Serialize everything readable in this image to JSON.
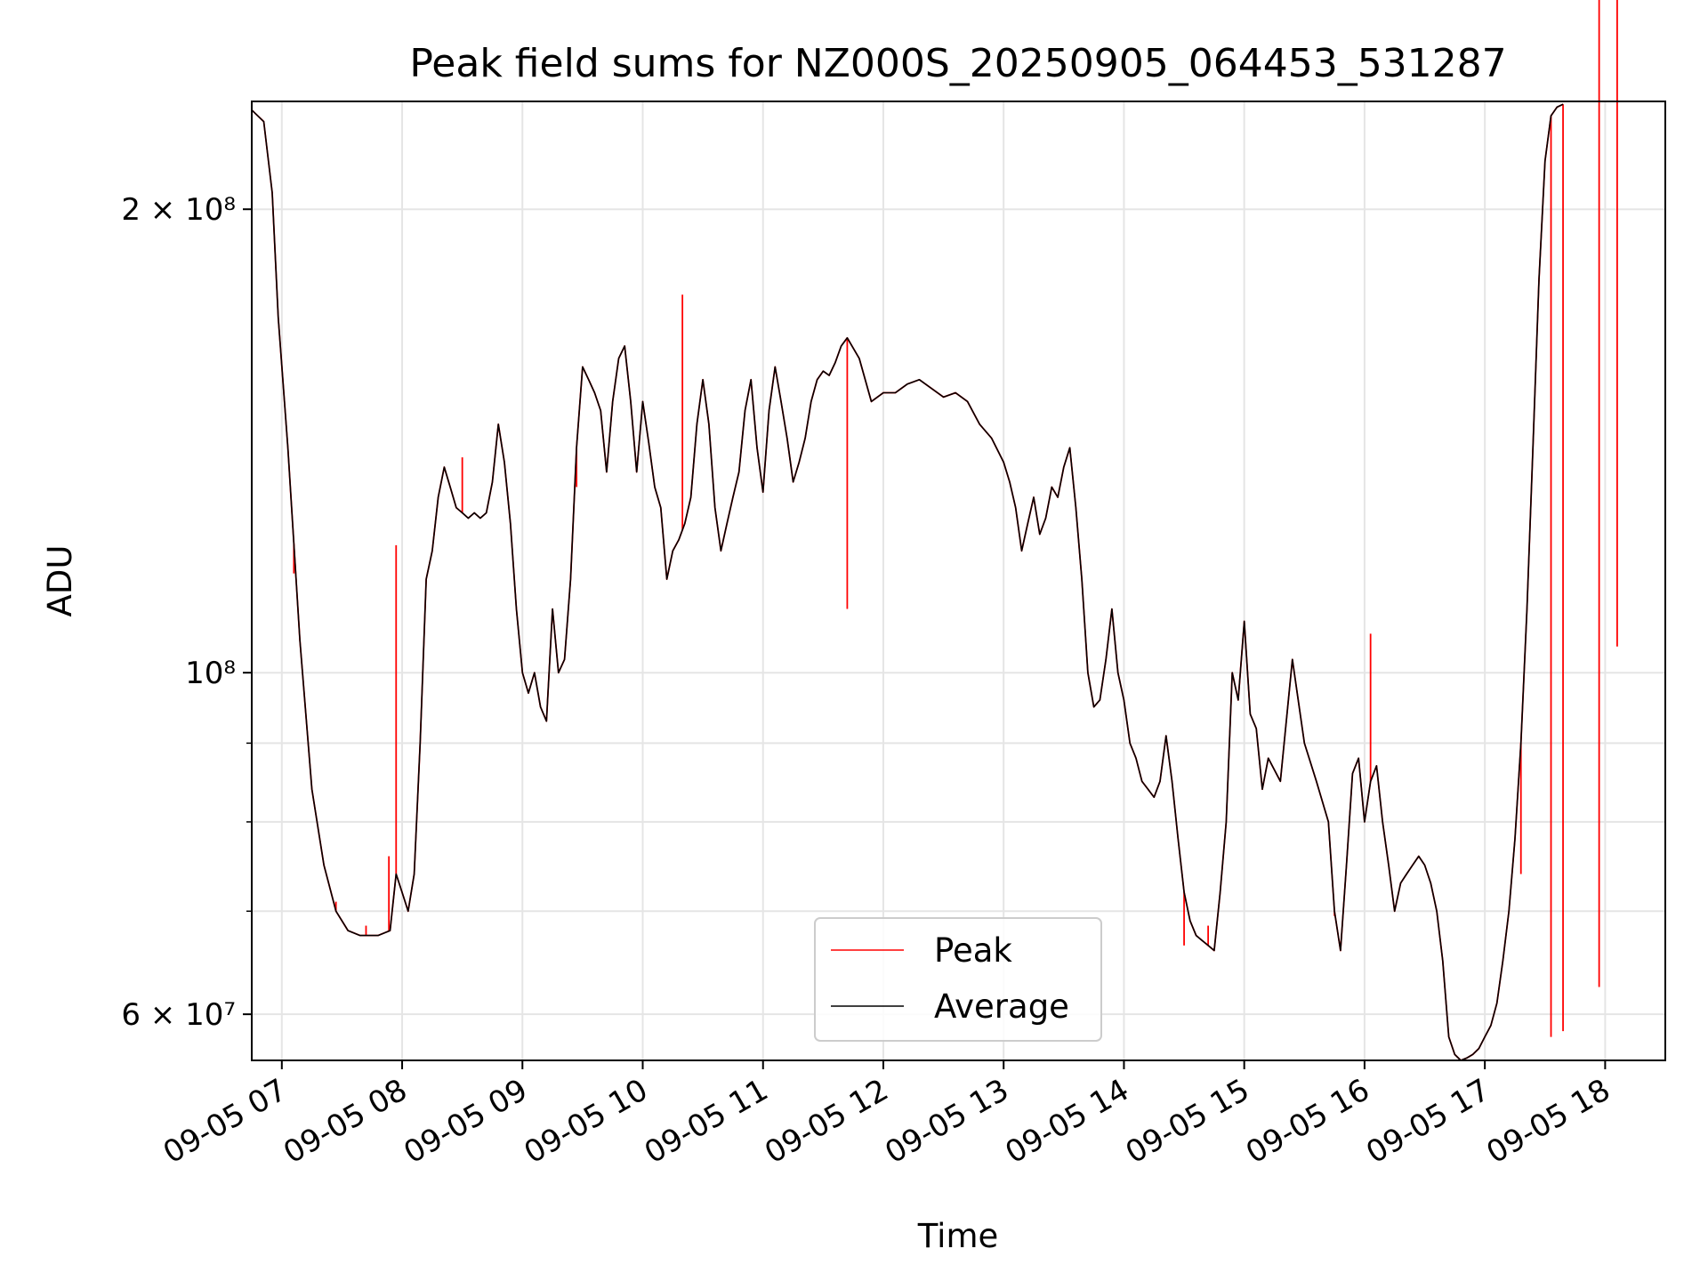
{
  "chart_data": {
    "type": "line",
    "title": "Peak field sums for NZ000S_20250905_064453_531287",
    "xlabel": "Time",
    "ylabel": "ADU",
    "y_scale": "log",
    "xlim": [
      "09-05 06:45",
      "09-05 18:30"
    ],
    "ylim": [
      56000000,
      235000000
    ],
    "grid": true,
    "legend_position": "lower center",
    "x_ticks": [
      "09-05 07",
      "09-05 08",
      "09-05 09",
      "09-05 10",
      "09-05 11",
      "09-05 12",
      "09-05 13",
      "09-05 14",
      "09-05 15",
      "09-05 16",
      "09-05 17",
      "09-05 18"
    ],
    "y_major_ticks": [
      {
        "value": 60000000,
        "label": "6 × 10⁷"
      },
      {
        "value": 100000000,
        "label": "10⁸"
      },
      {
        "value": 200000000,
        "label": "2 × 10⁸"
      }
    ],
    "y_minor_ticks": [
      70000000,
      80000000,
      90000000
    ],
    "x_hours": [
      6.75,
      6.85,
      6.92,
      6.97,
      7.05,
      7.15,
      7.25,
      7.35,
      7.45,
      7.55,
      7.65,
      7.8,
      7.9,
      7.95,
      8.0,
      8.05,
      8.1,
      8.15,
      8.2,
      8.25,
      8.3,
      8.35,
      8.4,
      8.45,
      8.5,
      8.55,
      8.6,
      8.65,
      8.7,
      8.75,
      8.8,
      8.85,
      8.9,
      8.95,
      9.0,
      9.05,
      9.1,
      9.15,
      9.2,
      9.25,
      9.3,
      9.35,
      9.4,
      9.45,
      9.5,
      9.55,
      9.6,
      9.65,
      9.7,
      9.75,
      9.8,
      9.85,
      9.9,
      9.95,
      10.0,
      10.05,
      10.1,
      10.15,
      10.2,
      10.25,
      10.3,
      10.35,
      10.4,
      10.45,
      10.5,
      10.55,
      10.6,
      10.65,
      10.7,
      10.75,
      10.8,
      10.85,
      10.9,
      10.95,
      11.0,
      11.05,
      11.1,
      11.15,
      11.2,
      11.25,
      11.3,
      11.35,
      11.4,
      11.45,
      11.5,
      11.55,
      11.6,
      11.65,
      11.7,
      11.8,
      11.9,
      12.0,
      12.1,
      12.2,
      12.3,
      12.4,
      12.5,
      12.6,
      12.7,
      12.8,
      12.9,
      13.0,
      13.05,
      13.1,
      13.15,
      13.2,
      13.25,
      13.3,
      13.35,
      13.4,
      13.45,
      13.5,
      13.55,
      13.6,
      13.65,
      13.7,
      13.75,
      13.8,
      13.85,
      13.9,
      13.95,
      14.0,
      14.05,
      14.1,
      14.15,
      14.2,
      14.25,
      14.3,
      14.35,
      14.4,
      14.45,
      14.5,
      14.55,
      14.6,
      14.65,
      14.7,
      14.75,
      14.8,
      14.85,
      14.9,
      14.95,
      15.0,
      15.05,
      15.1,
      15.15,
      15.2,
      15.3,
      15.4,
      15.5,
      15.6,
      15.7,
      15.75,
      15.8,
      15.85,
      15.9,
      15.95,
      16.0,
      16.05,
      16.1,
      16.15,
      16.2,
      16.25,
      16.3,
      16.35,
      16.4,
      16.45,
      16.5,
      16.55,
      16.6,
      16.65,
      16.7,
      16.75,
      16.8,
      16.85,
      16.9,
      16.95,
      17.0,
      17.05,
      17.1,
      17.15,
      17.2,
      17.25,
      17.3,
      17.35,
      17.4,
      17.45,
      17.5,
      17.55,
      17.6,
      17.65,
      17.7,
      17.75,
      17.8,
      17.85,
      17.9,
      17.95,
      18.0,
      18.05,
      18.1,
      18.15,
      18.2,
      18.25,
      18.3,
      18.35,
      18.4,
      18.45,
      18.5
    ],
    "series": [
      {
        "name": "Average",
        "color": "#000000",
        "values": [
          232000000,
          228000000,
          205000000,
          170000000,
          140000000,
          105000000,
          84000000,
          75000000,
          70000000,
          68000000,
          67500000,
          67500000,
          68000000,
          74000000,
          72000000,
          70000000,
          74000000,
          90000000,
          115000000,
          120000000,
          130000000,
          136000000,
          132000000,
          128000000,
          127000000,
          126000000,
          127000000,
          126000000,
          127000000,
          133000000,
          145000000,
          137000000,
          125000000,
          110000000,
          100000000,
          97000000,
          100000000,
          95000000,
          93000000,
          110000000,
          100000000,
          102000000,
          115000000,
          140000000,
          158000000,
          155000000,
          152000000,
          148000000,
          135000000,
          150000000,
          160000000,
          163000000,
          150000000,
          135000000,
          150000000,
          141000000,
          132000000,
          128000000,
          115000000,
          120000000,
          122000000,
          125000000,
          130000000,
          145000000,
          155000000,
          145000000,
          128000000,
          120000000,
          125000000,
          130000000,
          135000000,
          148000000,
          155000000,
          140000000,
          131000000,
          148000000,
          158000000,
          150000000,
          142000000,
          133000000,
          137000000,
          142000000,
          150000000,
          155000000,
          157000000,
          156000000,
          159000000,
          163000000,
          165000000,
          160000000,
          150000000,
          152000000,
          152000000,
          154000000,
          155000000,
          153000000,
          151000000,
          152000000,
          150000000,
          145000000,
          142000000,
          137000000,
          133000000,
          128000000,
          120000000,
          125000000,
          130000000,
          123000000,
          126000000,
          132000000,
          130000000,
          136000000,
          140000000,
          128000000,
          115000000,
          100000000,
          95000000,
          96000000,
          102000000,
          110000000,
          100000000,
          96000000,
          90000000,
          88000000,
          85000000,
          84000000,
          83000000,
          85000000,
          91000000,
          85000000,
          78000000,
          72000000,
          69000000,
          67500000,
          67000000,
          66500000,
          66000000,
          72000000,
          80000000,
          100000000,
          96000000,
          108000000,
          94000000,
          92000000,
          84000000,
          88000000,
          85000000,
          102000000,
          90000000,
          85000000,
          80000000,
          70000000,
          66000000,
          75000000,
          86000000,
          88000000,
          80000000,
          85000000,
          87000000,
          80000000,
          75000000,
          70000000,
          73000000,
          74000000,
          75000000,
          76000000,
          75000000,
          73000000,
          70000000,
          65000000,
          58000000,
          56500000,
          56000000,
          56200000,
          56500000,
          57000000,
          58000000,
          59000000,
          61000000,
          65000000,
          70000000,
          78000000,
          90000000,
          110000000,
          140000000,
          180000000,
          215000000,
          230000000,
          233000000,
          234000000
        ]
      },
      {
        "name": "Peak",
        "color": "#ff0000",
        "values": [
          232000000,
          228000000,
          205000000,
          170000000,
          140000000,
          105000000,
          84000000,
          75000000,
          70000000,
          68000000,
          67500000,
          67500000,
          68000000,
          74000000,
          72000000,
          70000000,
          74000000,
          90000000,
          115000000,
          120000000,
          130000000,
          136000000,
          132000000,
          128000000,
          127000000,
          126000000,
          127000000,
          126000000,
          127000000,
          133000000,
          145000000,
          137000000,
          125000000,
          110000000,
          100000000,
          97000000,
          100000000,
          95000000,
          93000000,
          110000000,
          100000000,
          102000000,
          115000000,
          140000000,
          158000000,
          155000000,
          152000000,
          148000000,
          135000000,
          150000000,
          160000000,
          163000000,
          150000000,
          135000000,
          150000000,
          141000000,
          132000000,
          128000000,
          115000000,
          120000000,
          122000000,
          125000000,
          130000000,
          145000000,
          155000000,
          145000000,
          128000000,
          120000000,
          125000000,
          130000000,
          135000000,
          148000000,
          155000000,
          140000000,
          131000000,
          148000000,
          158000000,
          150000000,
          142000000,
          133000000,
          137000000,
          142000000,
          150000000,
          155000000,
          157000000,
          156000000,
          159000000,
          163000000,
          165000000,
          160000000,
          150000000,
          152000000,
          152000000,
          154000000,
          155000000,
          153000000,
          151000000,
          152000000,
          150000000,
          145000000,
          142000000,
          137000000,
          133000000,
          128000000,
          120000000,
          125000000,
          130000000,
          123000000,
          126000000,
          132000000,
          130000000,
          136000000,
          140000000,
          128000000,
          115000000,
          100000000,
          95000000,
          96000000,
          102000000,
          110000000,
          100000000,
          96000000,
          90000000,
          88000000,
          85000000,
          84000000,
          83000000,
          85000000,
          91000000,
          85000000,
          78000000,
          72000000,
          69000000,
          67500000,
          67000000,
          66500000,
          66000000,
          72000000,
          80000000,
          100000000,
          96000000,
          108000000,
          94000000,
          92000000,
          84000000,
          88000000,
          85000000,
          102000000,
          90000000,
          85000000,
          80000000,
          70000000,
          66000000,
          75000000,
          86000000,
          88000000,
          80000000,
          85000000,
          87000000,
          80000000,
          75000000,
          70000000,
          73000000,
          74000000,
          75000000,
          76000000,
          75000000,
          73000000,
          70000000,
          65000000,
          58000000,
          56500000,
          56000000,
          56200000,
          56500000,
          57000000,
          58000000,
          59000000,
          61000000,
          65000000,
          70000000,
          78000000,
          90000000,
          110000000,
          140000000,
          180000000,
          215000000,
          230000000,
          233000000,
          234000000
        ],
        "spikes": [
          {
            "x": 7.1,
            "value": 116000000
          },
          {
            "x": 7.45,
            "value": 71000000
          },
          {
            "x": 7.7,
            "value": 68500000
          },
          {
            "x": 7.89,
            "value": 76000000
          },
          {
            "x": 7.95,
            "value": 121000000
          },
          {
            "x": 8.5,
            "value": 138000000
          },
          {
            "x": 9.45,
            "value": 132000000
          },
          {
            "x": 10.33,
            "value": 176000000
          },
          {
            "x": 11.7,
            "value": 110000000
          },
          {
            "x": 14.5,
            "value": 66500000
          },
          {
            "x": 14.7,
            "value": 68500000
          },
          {
            "x": 15.75,
            "value": 69500000
          },
          {
            "x": 16.05,
            "value": 106000000
          },
          {
            "x": 17.3,
            "value": 74000000
          },
          {
            "x": 17.55,
            "value": 58000000
          },
          {
            "x": 17.65,
            "value": 58500000
          },
          {
            "x": 17.95,
            "value": 62500000
          },
          {
            "x": 18.1,
            "value": 104000000
          }
        ]
      }
    ]
  }
}
